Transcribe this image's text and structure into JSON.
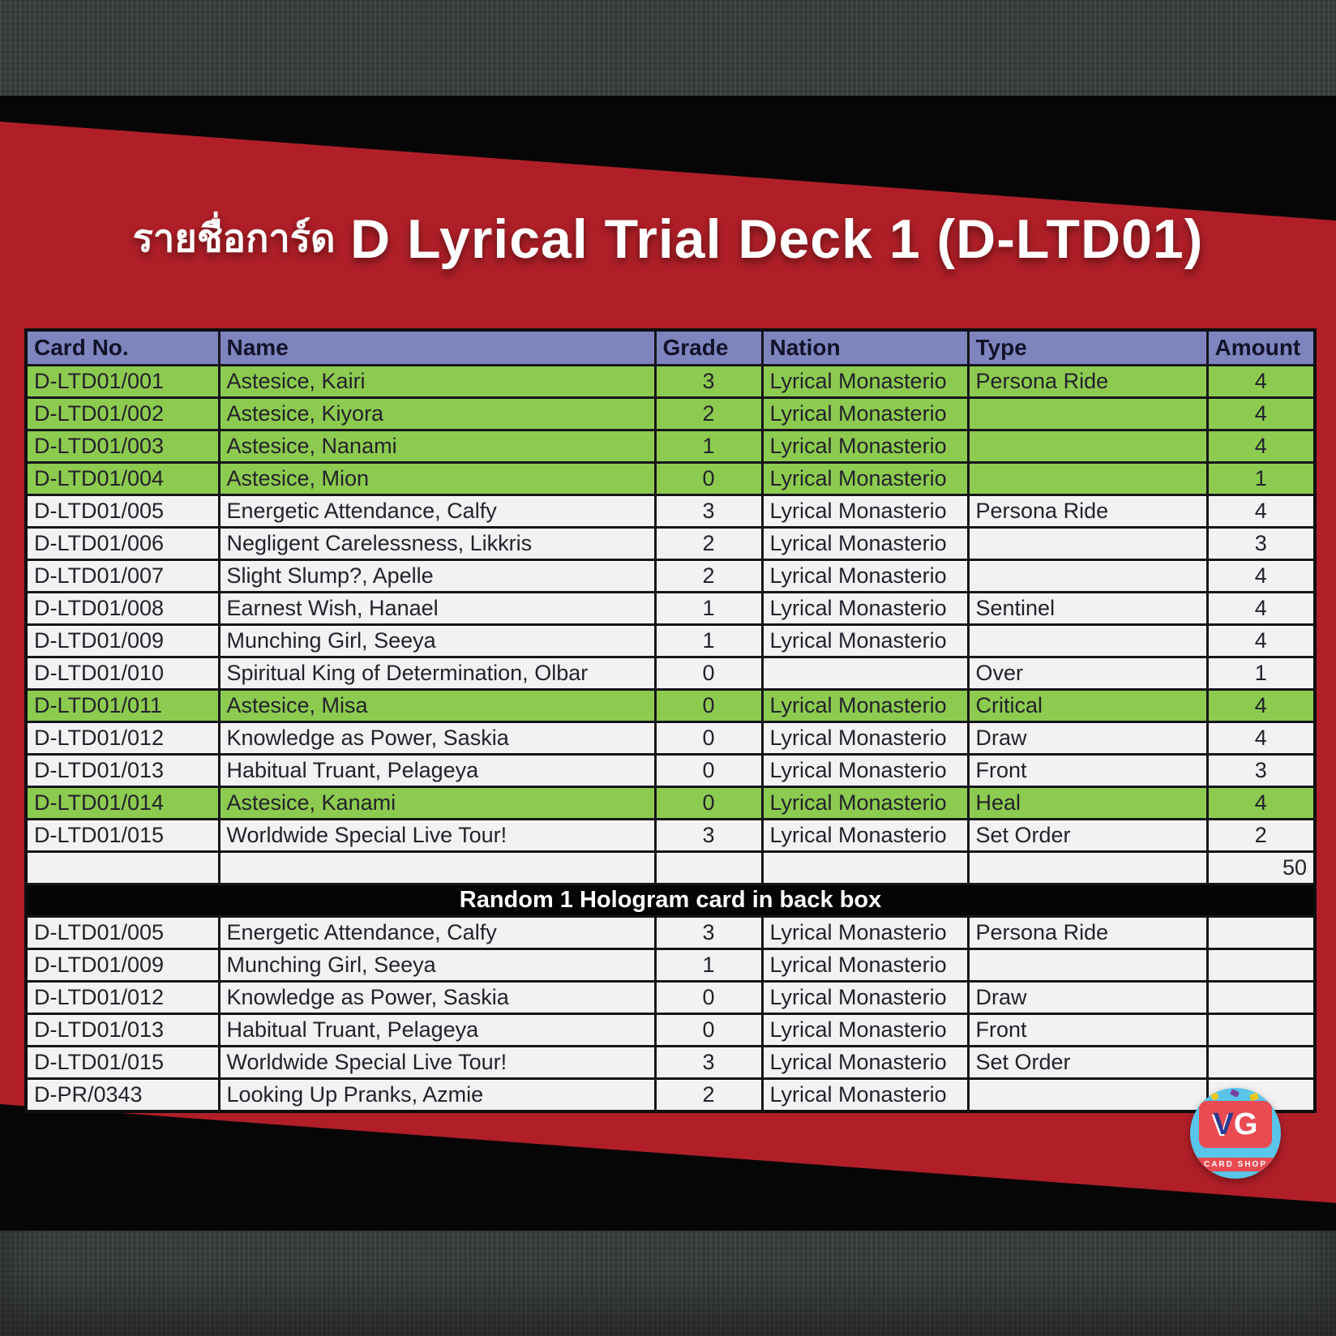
{
  "page": {
    "title_prefix_thai": "รายชื่อการ์ด",
    "title_main": "D Lyrical Trial Deck 1 (D-LTD01)"
  },
  "colors": {
    "plate_red": "#b01f28",
    "highlight_green": "#8dcb50",
    "header_blue": "#7e84bd",
    "row_white": "#f3f1f2",
    "separator_black": "#050506",
    "band_grey": "#3a3d3e",
    "logo_circle_blue": "#58c5e9",
    "logo_red": "#ea4a52"
  },
  "table": {
    "columns": [
      "Card No.",
      "Name",
      "Grade",
      "Nation",
      "Type",
      "Amount"
    ],
    "main_rows": [
      {
        "card_no": "D-LTD01/001",
        "name": "Astesice, Kairi",
        "grade": "3",
        "nation": "Lyrical Monasterio",
        "type": "Persona Ride",
        "amount": "4",
        "highlight": true
      },
      {
        "card_no": "D-LTD01/002",
        "name": "Astesice, Kiyora",
        "grade": "2",
        "nation": "Lyrical Monasterio",
        "type": "",
        "amount": "4",
        "highlight": true
      },
      {
        "card_no": "D-LTD01/003",
        "name": "Astesice, Nanami",
        "grade": "1",
        "nation": "Lyrical Monasterio",
        "type": "",
        "amount": "4",
        "highlight": true
      },
      {
        "card_no": "D-LTD01/004",
        "name": "Astesice, Mion",
        "grade": "0",
        "nation": "Lyrical Monasterio",
        "type": "",
        "amount": "1",
        "highlight": true
      },
      {
        "card_no": "D-LTD01/005",
        "name": "Energetic Attendance, Calfy",
        "grade": "3",
        "nation": "Lyrical Monasterio",
        "type": "Persona Ride",
        "amount": "4",
        "highlight": false
      },
      {
        "card_no": "D-LTD01/006",
        "name": "Negligent Carelessness, Likkris",
        "grade": "2",
        "nation": "Lyrical Monasterio",
        "type": "",
        "amount": "3",
        "highlight": false
      },
      {
        "card_no": "D-LTD01/007",
        "name": "Slight Slump?, Apelle",
        "grade": "2",
        "nation": "Lyrical Monasterio",
        "type": "",
        "amount": "4",
        "highlight": false
      },
      {
        "card_no": "D-LTD01/008",
        "name": "Earnest Wish, Hanael",
        "grade": "1",
        "nation": "Lyrical Monasterio",
        "type": "Sentinel",
        "amount": "4",
        "highlight": false
      },
      {
        "card_no": "D-LTD01/009",
        "name": "Munching Girl, Seeya",
        "grade": "1",
        "nation": "Lyrical Monasterio",
        "type": "",
        "amount": "4",
        "highlight": false
      },
      {
        "card_no": "D-LTD01/010",
        "name": "Spiritual King of Determination, Olbar",
        "grade": "0",
        "nation": "",
        "type": "Over",
        "amount": "1",
        "highlight": false
      },
      {
        "card_no": "D-LTD01/011",
        "name": "Astesice, Misa",
        "grade": "0",
        "nation": "Lyrical Monasterio",
        "type": "Critical",
        "amount": "4",
        "highlight": true
      },
      {
        "card_no": "D-LTD01/012",
        "name": "Knowledge as Power, Saskia",
        "grade": "0",
        "nation": "Lyrical Monasterio",
        "type": "Draw",
        "amount": "4",
        "highlight": false
      },
      {
        "card_no": "D-LTD01/013",
        "name": "Habitual Truant, Pelageya",
        "grade": "0",
        "nation": "Lyrical Monasterio",
        "type": "Front",
        "amount": "3",
        "highlight": false
      },
      {
        "card_no": "D-LTD01/014",
        "name": "Astesice, Kanami",
        "grade": "0",
        "nation": "Lyrical Monasterio",
        "type": "Heal",
        "amount": "4",
        "highlight": true
      },
      {
        "card_no": "D-LTD01/015",
        "name": "Worldwide Special Live Tour!",
        "grade": "3",
        "nation": "Lyrical Monasterio",
        "type": "Set Order",
        "amount": "2",
        "highlight": false
      }
    ],
    "total_amount": "50",
    "separator_label": "Random 1 Hologram card in back box",
    "hologram_rows": [
      {
        "card_no": "D-LTD01/005",
        "name": "Energetic Attendance, Calfy",
        "grade": "3",
        "nation": "Lyrical Monasterio",
        "type": "Persona Ride",
        "amount": "",
        "highlight": false
      },
      {
        "card_no": "D-LTD01/009",
        "name": "Munching Girl, Seeya",
        "grade": "1",
        "nation": "Lyrical Monasterio",
        "type": "",
        "amount": "",
        "highlight": false
      },
      {
        "card_no": "D-LTD01/012",
        "name": "Knowledge as Power, Saskia",
        "grade": "0",
        "nation": "Lyrical Monasterio",
        "type": "Draw",
        "amount": "",
        "highlight": false
      },
      {
        "card_no": "D-LTD01/013",
        "name": "Habitual Truant, Pelageya",
        "grade": "0",
        "nation": "Lyrical Monasterio",
        "type": "Front",
        "amount": "",
        "highlight": false
      },
      {
        "card_no": "D-LTD01/015",
        "name": "Worldwide Special Live Tour!",
        "grade": "3",
        "nation": "Lyrical Monasterio",
        "type": "Set Order",
        "amount": "",
        "highlight": false
      },
      {
        "card_no": "D-PR/0343",
        "name": "Looking Up Pranks, Azmie",
        "grade": "2",
        "nation": "Lyrical Monasterio",
        "type": "",
        "amount": "",
        "highlight": false
      }
    ]
  },
  "logo": {
    "letter_v": "V",
    "letter_g": "G",
    "caption": "CARD SHOP"
  }
}
